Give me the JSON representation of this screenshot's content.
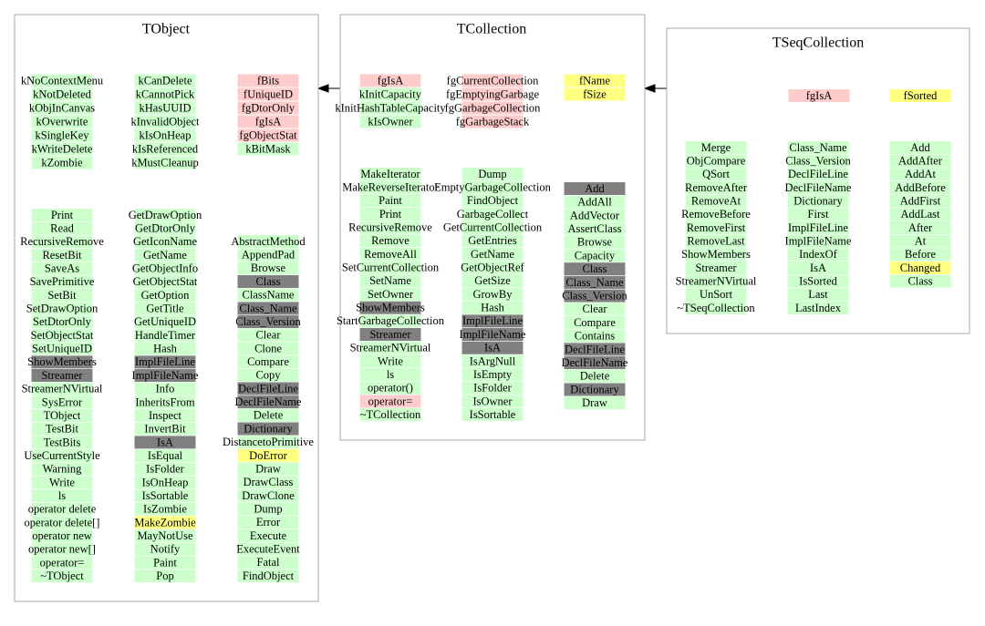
{
  "classes": [
    {
      "title": "TObject",
      "columns": [
        {
          "color": "#ccffcc",
          "items": [
            "kNoContextMenu",
            "kNotDeleted",
            "kObjInCanvas",
            "kOverwrite",
            "kSingleKey",
            "kWriteDelete",
            "kZombie"
          ]
        },
        {
          "color": "#ccffcc",
          "items": [
            "kCanDelete",
            "kCannotPick",
            "kHasUUID",
            "kInvalidObject",
            "kIsOnHeap",
            "kIsReferenced",
            "kMustCleanup"
          ]
        },
        {
          "color": "#ffcccc",
          "items": [
            "fBits",
            "fUniqueID",
            "fgDtorOnly",
            "fgIsA",
            "fgObjectStat",
            {
              "text": "kBitMask",
              "color": "#ccffcc"
            }
          ]
        },
        {
          "color": "#ccffcc",
          "items": [
            "Print",
            "Read",
            "RecursiveRemove",
            "ResetBit",
            "SaveAs",
            "SavePrimitive",
            "SetBit",
            "SetDrawOption",
            "SetDtorOnly",
            "SetObjectStat",
            "SetUniqueID",
            {
              "text": "ShowMembers",
              "color": "#808080"
            },
            {
              "text": "Streamer",
              "color": "#808080"
            },
            "StreamerNVirtual",
            "SysError",
            "TObject",
            "TestBit",
            "TestBits",
            "UseCurrentStyle",
            "Warning",
            "Write",
            "ls",
            "operator delete",
            "operator delete[]",
            "operator new",
            "operator new[]",
            "operator=",
            "~TObject"
          ]
        },
        {
          "color": "#ccffcc",
          "items": [
            "GetDrawOption",
            "GetDtorOnly",
            "GetIconName",
            "GetName",
            "GetObjectInfo",
            "GetObjectStat",
            "GetOption",
            "GetTitle",
            "GetUniqueID",
            "HandleTimer",
            "Hash",
            {
              "text": "ImplFileLine",
              "color": "#808080"
            },
            {
              "text": "ImplFileName",
              "color": "#808080"
            },
            "Info",
            "InheritsFrom",
            "Inspect",
            "InvertBit",
            {
              "text": "IsA",
              "color": "#808080"
            },
            "IsEqual",
            "IsFolder",
            "IsOnHeap",
            "IsSortable",
            "IsZombie",
            {
              "text": "MakeZombie",
              "color": "#ffff80"
            },
            "MayNotUse",
            "Notify",
            "Paint",
            "Pop"
          ]
        },
        {
          "color": "#ccffcc",
          "items": [
            "AbstractMethod",
            "AppendPad",
            "Browse",
            {
              "text": "Class",
              "color": "#808080"
            },
            "ClassName",
            {
              "text": "Class_Name",
              "color": "#808080"
            },
            {
              "text": "Class_Version",
              "color": "#808080"
            },
            "Clear",
            "Clone",
            "Compare",
            "Copy",
            {
              "text": "DeclFileLine",
              "color": "#808080"
            },
            {
              "text": "DeclFileName",
              "color": "#808080"
            },
            "Delete",
            {
              "text": "Dictionary",
              "color": "#808080"
            },
            "DistancetoPrimitive",
            {
              "text": "DoError",
              "color": "#ffff80"
            },
            "Draw",
            "DrawClass",
            "DrawClone",
            "Dump",
            "Error",
            "Execute",
            "ExecuteEvent",
            "Fatal",
            "FindObject"
          ]
        }
      ]
    },
    {
      "title": "TCollection",
      "columns": [
        {
          "color": "#ccffcc",
          "items": [
            {
              "text": "fgIsA",
              "color": "#ffcccc"
            },
            "kInitCapacity",
            "kInitHashTableCapacity",
            "kIsOwner"
          ]
        },
        {
          "color": "#ffcccc",
          "items": [
            "fgCurrentCollection",
            "fgEmptyingGarbage",
            "fgGarbageCollection",
            "fgGarbageStack"
          ]
        },
        {
          "color": "#ffff80",
          "items": [
            "fName",
            "fSize"
          ]
        },
        {
          "color": "#ccffcc",
          "items": [
            "MakeIterator",
            "MakeReverseIterator",
            "Paint",
            "Print",
            "RecursiveRemove",
            "Remove",
            "RemoveAll",
            "SetCurrentCollection",
            "SetName",
            "SetOwner",
            {
              "text": "ShowMembers",
              "color": "#808080"
            },
            "StartGarbageCollection",
            {
              "text": "Streamer",
              "color": "#808080"
            },
            "StreamerNVirtual",
            "Write",
            "ls",
            "operator()",
            {
              "text": "operator=",
              "color": "#ffcccc"
            },
            "~TCollection"
          ]
        },
        {
          "color": "#ccffcc",
          "items": [
            "Dump",
            "EmptyGarbageCollection",
            "FindObject",
            "GarbageCollect",
            "GetCurrentCollection",
            "GetEntries",
            "GetName",
            "GetObjectRef",
            "GetSize",
            "GrowBy",
            "Hash",
            {
              "text": "ImplFileLine",
              "color": "#808080"
            },
            {
              "text": "ImplFileName",
              "color": "#808080"
            },
            {
              "text": "IsA",
              "color": "#808080"
            },
            "IsArgNull",
            "IsEmpty",
            "IsFolder",
            "IsOwner",
            "IsSortable"
          ]
        },
        {
          "color": "#ccffcc",
          "items": [
            {
              "text": "Add",
              "color": "#808080"
            },
            "AddAll",
            "AddVector",
            "AssertClass",
            "Browse",
            "Capacity",
            {
              "text": "Class",
              "color": "#808080"
            },
            {
              "text": "Class_Name",
              "color": "#808080"
            },
            {
              "text": "Class_Version",
              "color": "#808080"
            },
            "Clear",
            "Compare",
            "Contains",
            {
              "text": "DeclFileLine",
              "color": "#808080"
            },
            {
              "text": "DeclFileName",
              "color": "#808080"
            },
            "Delete",
            {
              "text": "Dictionary",
              "color": "#808080"
            },
            "Draw"
          ]
        }
      ]
    },
    {
      "title": "TSeqCollection",
      "columns": [
        {
          "color": "#ffcccc",
          "items": [
            "fgIsA"
          ]
        },
        {
          "color": "#ffff80",
          "items": [
            "fSorted"
          ]
        },
        {
          "color": "#ccffcc",
          "items": [
            "Merge",
            "ObjCompare",
            "QSort",
            "RemoveAfter",
            "RemoveAt",
            "RemoveBefore",
            "RemoveFirst",
            "RemoveLast",
            "ShowMembers",
            "Streamer",
            "StreamerNVirtual",
            "UnSort",
            "~TSeqCollection"
          ]
        },
        {
          "color": "#ccffcc",
          "items": [
            "Class_Name",
            "Class_Version",
            "DeclFileLine",
            "DeclFileName",
            "Dictionary",
            "First",
            "ImplFileLine",
            "ImplFileName",
            "IndexOf",
            "IsA",
            "IsSorted",
            "Last",
            "LastIndex"
          ]
        },
        {
          "color": "#ccffcc",
          "items": [
            "Add",
            "AddAfter",
            "AddAt",
            "AddBefore",
            "AddFirst",
            "AddLast",
            "After",
            "At",
            "Before",
            {
              "text": "Changed",
              "color": "#ffff80"
            },
            "Class"
          ]
        }
      ]
    }
  ]
}
